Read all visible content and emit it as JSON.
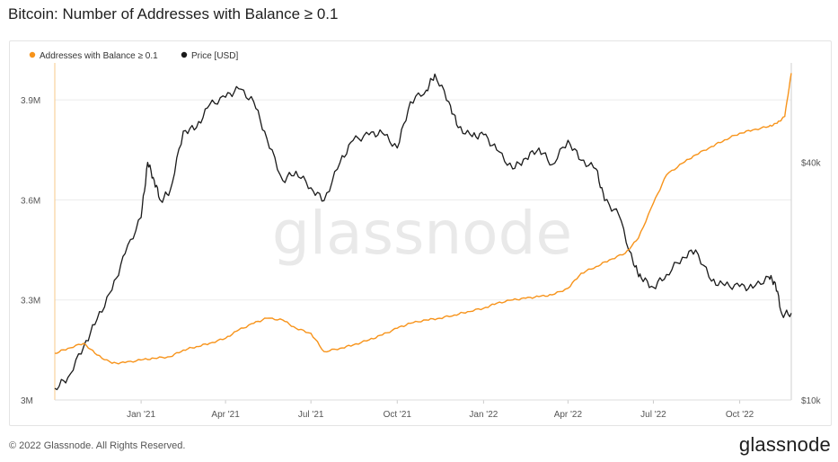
{
  "title": "Bitcoin: Number of Addresses with Balance ≥ 0.1",
  "footer": {
    "copyright": "© 2022 Glassnode. All Rights Reserved.",
    "logo": "glassnode"
  },
  "watermark": "glassnode",
  "colors": {
    "addresses": "#f7931a",
    "price": "#1a1a1a",
    "grid": "#ececec",
    "axis_text": "#555555"
  },
  "chart_data": {
    "type": "line",
    "title": "Bitcoin: Number of Addresses with Balance ≥ 0.1",
    "legend": {
      "placement": "top-left",
      "entries": [
        "Addresses with Balance ≥ 0.1",
        "Price [USD]"
      ]
    },
    "x_ticks": [
      "Jan '21",
      "Apr '21",
      "Jul '21",
      "Oct '21",
      "Jan '22",
      "Apr '22",
      "Jul '22",
      "Oct '22"
    ],
    "x_range": [
      "2020-10-01",
      "2022-11-25"
    ],
    "y_left": {
      "ticks": [
        "3M",
        "3.3M",
        "3.6M",
        "3.9M"
      ],
      "values": [
        3000000,
        3300000,
        3600000,
        3900000
      ],
      "range": [
        3000000,
        4000000
      ]
    },
    "y_right": {
      "scale": "log",
      "ticks": [
        "$10k",
        "$40k"
      ],
      "values": [
        10000,
        40000
      ],
      "range": [
        10000,
        70000
      ]
    },
    "grid": true,
    "series": [
      {
        "name": "Addresses with Balance ≥ 0.1",
        "axis": "left",
        "x": [
          "2020-10-01",
          "2020-10-15",
          "2020-11-01",
          "2020-11-15",
          "2020-12-01",
          "2020-12-15",
          "2021-01-01",
          "2021-01-15",
          "2021-02-01",
          "2021-02-15",
          "2021-03-01",
          "2021-03-15",
          "2021-04-01",
          "2021-04-15",
          "2021-05-01",
          "2021-05-15",
          "2021-06-01",
          "2021-06-15",
          "2021-07-01",
          "2021-07-15",
          "2021-08-01",
          "2021-08-15",
          "2021-09-01",
          "2021-09-15",
          "2021-10-01",
          "2021-10-15",
          "2021-11-01",
          "2021-11-15",
          "2021-12-01",
          "2021-12-15",
          "2022-01-01",
          "2022-01-15",
          "2022-02-01",
          "2022-02-15",
          "2022-03-01",
          "2022-03-15",
          "2022-04-01",
          "2022-04-15",
          "2022-05-01",
          "2022-05-15",
          "2022-06-01",
          "2022-06-15",
          "2022-07-01",
          "2022-07-15",
          "2022-08-01",
          "2022-08-15",
          "2022-09-01",
          "2022-09-15",
          "2022-10-01",
          "2022-10-15",
          "2022-11-01",
          "2022-11-10",
          "2022-11-18",
          "2022-11-25"
        ],
        "y": [
          3140000,
          3155000,
          3170000,
          3135000,
          3110000,
          3112000,
          3120000,
          3125000,
          3130000,
          3150000,
          3160000,
          3170000,
          3185000,
          3210000,
          3230000,
          3245000,
          3240000,
          3215000,
          3200000,
          3145000,
          3155000,
          3165000,
          3180000,
          3195000,
          3215000,
          3230000,
          3240000,
          3245000,
          3255000,
          3265000,
          3275000,
          3290000,
          3300000,
          3305000,
          3310000,
          3315000,
          3335000,
          3380000,
          3400000,
          3420000,
          3440000,
          3485000,
          3590000,
          3675000,
          3710000,
          3735000,
          3760000,
          3780000,
          3800000,
          3810000,
          3820000,
          3830000,
          3850000,
          3980000
        ]
      },
      {
        "name": "Price [USD]",
        "axis": "right",
        "x": [
          "2020-10-01",
          "2020-10-15",
          "2020-11-01",
          "2020-11-15",
          "2020-12-01",
          "2020-12-15",
          "2021-01-01",
          "2021-01-08",
          "2021-01-15",
          "2021-01-22",
          "2021-02-01",
          "2021-02-15",
          "2021-03-01",
          "2021-03-15",
          "2021-04-01",
          "2021-04-15",
          "2021-05-01",
          "2021-05-15",
          "2021-06-01",
          "2021-06-15",
          "2021-07-01",
          "2021-07-15",
          "2021-08-01",
          "2021-08-15",
          "2021-09-01",
          "2021-09-15",
          "2021-10-01",
          "2021-10-15",
          "2021-11-01",
          "2021-11-10",
          "2021-11-25",
          "2021-12-05",
          "2021-12-20",
          "2022-01-01",
          "2022-01-15",
          "2022-02-01",
          "2022-02-15",
          "2022-03-01",
          "2022-03-15",
          "2022-04-01",
          "2022-04-15",
          "2022-05-01",
          "2022-05-10",
          "2022-05-25",
          "2022-06-10",
          "2022-06-18",
          "2022-07-01",
          "2022-07-15",
          "2022-08-01",
          "2022-08-15",
          "2022-09-01",
          "2022-09-15",
          "2022-10-01",
          "2022-10-15",
          "2022-11-01",
          "2022-11-08",
          "2022-11-15",
          "2022-11-25"
        ],
        "y": [
          10700,
          11400,
          13700,
          16000,
          19000,
          23500,
          29000,
          40000,
          36000,
          32000,
          34000,
          48000,
          49000,
          56000,
          58500,
          61500,
          57000,
          46000,
          36000,
          38000,
          34500,
          32000,
          40000,
          45500,
          47000,
          47500,
          43500,
          57000,
          61000,
          67000,
          57000,
          49000,
          46500,
          47000,
          43000,
          38500,
          41000,
          43500,
          39500,
          45500,
          40500,
          38500,
          32000,
          29500,
          22000,
          20400,
          19300,
          20800,
          23000,
          24000,
          20000,
          19500,
          19400,
          19200,
          20500,
          19800,
          16500,
          16600
        ]
      }
    ]
  }
}
